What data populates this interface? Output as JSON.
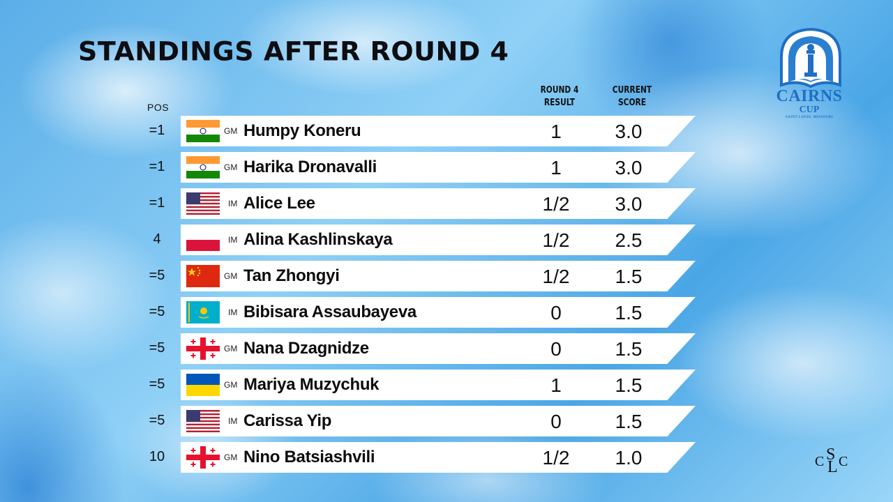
{
  "title": "STANDINGS AFTER ROUND 4",
  "headers": {
    "pos": "POS",
    "round_result_line1": "ROUND 4",
    "round_result_line2": "RESULT",
    "score_line1": "CURRENT",
    "score_line2": "SCORE"
  },
  "rows": [
    {
      "pos": "=1",
      "flag": "india-flag",
      "title": "GM",
      "name": "Humpy Koneru",
      "result": "1",
      "score": "3.0"
    },
    {
      "pos": "=1",
      "flag": "india-flag",
      "title": "GM",
      "name": "Harika Dronavalli",
      "result": "1",
      "score": "3.0"
    },
    {
      "pos": "=1",
      "flag": "usa-flag",
      "title": "IM",
      "name": "Alice Lee",
      "result": "1/2",
      "score": "3.0"
    },
    {
      "pos": "4",
      "flag": "poland-flag",
      "title": "IM",
      "name": "Alina Kashlinskaya",
      "result": "1/2",
      "score": "2.5"
    },
    {
      "pos": "=5",
      "flag": "china-flag",
      "title": "GM",
      "name": "Tan Zhongyi",
      "result": "1/2",
      "score": "1.5"
    },
    {
      "pos": "=5",
      "flag": "kazakhstan-flag",
      "title": "IM",
      "name": "Bibisara Assaubayeva",
      "result": "0",
      "score": "1.5"
    },
    {
      "pos": "=5",
      "flag": "georgia-flag",
      "title": "GM",
      "name": "Nana Dzagnidze",
      "result": "0",
      "score": "1.5"
    },
    {
      "pos": "=5",
      "flag": "ukraine-flag",
      "title": "GM",
      "name": "Mariya Muzychuk",
      "result": "1",
      "score": "1.5"
    },
    {
      "pos": "=5",
      "flag": "usa-flag",
      "title": "IM",
      "name": "Carissa Yip",
      "result": "0",
      "score": "1.5"
    },
    {
      "pos": "10",
      "flag": "georgia-flag",
      "title": "GM",
      "name": "Nino Batsiashvili",
      "result": "1/2",
      "score": "1.0"
    }
  ],
  "logo": {
    "name": "CAIRNS",
    "cup": "CUP",
    "location": "SAINT LOUIS, MISSOURI",
    "slc_letters": [
      "C",
      "S",
      "L",
      "C"
    ]
  },
  "colors": {
    "background": "#7cc0ee",
    "bar": "#ffffff",
    "logo_blue": "#1f6fc4"
  }
}
